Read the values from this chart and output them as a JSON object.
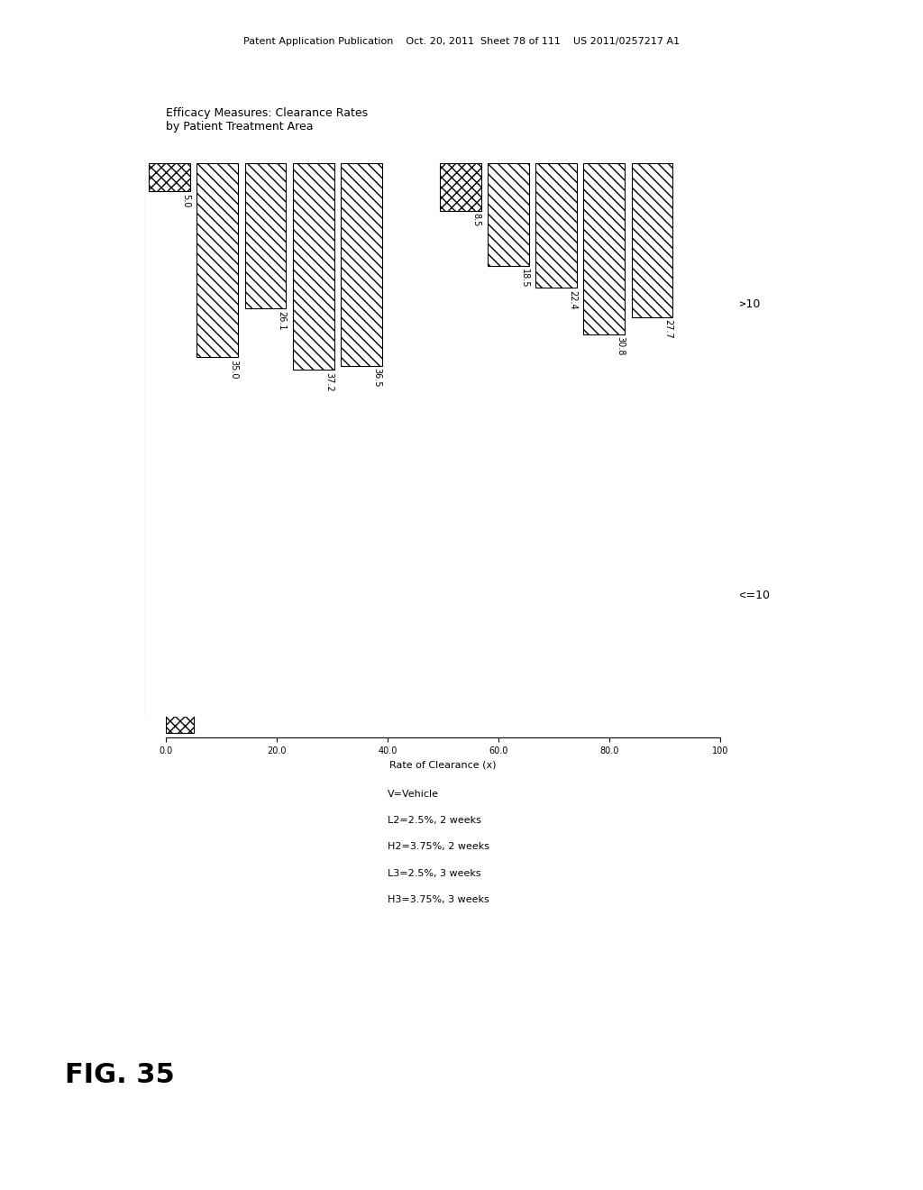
{
  "title": "Efficacy Measures: Clearance Rates\nby Patient Treatment Area",
  "xlabel": "Rate of Clearance (x)",
  "groups": [
    "<=10",
    ">10"
  ],
  "categories": [
    "V",
    "L2",
    "L3",
    "H2",
    "H3"
  ],
  "values": {
    "<=10": [
      5.0,
      35.0,
      26.1,
      37.2,
      36.5
    ],
    ">10": [
      8.5,
      18.5,
      22.4,
      30.8,
      27.7
    ]
  },
  "xlim": [
    0,
    100
  ],
  "xticks": [
    0.0,
    20.0,
    40.0,
    60.0,
    80.0,
    100
  ],
  "xticklabels": [
    "0.0",
    "20.0",
    "40.0",
    "60.0",
    "80.0",
    "100"
  ],
  "hatch_hatched": "///",
  "hatch_dotted": "xxx",
  "bar_height": 0.35,
  "background_color": "#ffffff",
  "legend_entries": [
    "V=Vehicle",
    "L2=2.5%, 2 weeks",
    "H2=3.75%, 2 weeks",
    "L3=2.5%, 3 weeks",
    "H3=3.75%, 3 weeks"
  ],
  "fig_label": "FIG. 35",
  "patent_header": "Patent Application Publication    Oct. 20, 2011  Sheet 78 of 111    US 2011/0257217 A1"
}
